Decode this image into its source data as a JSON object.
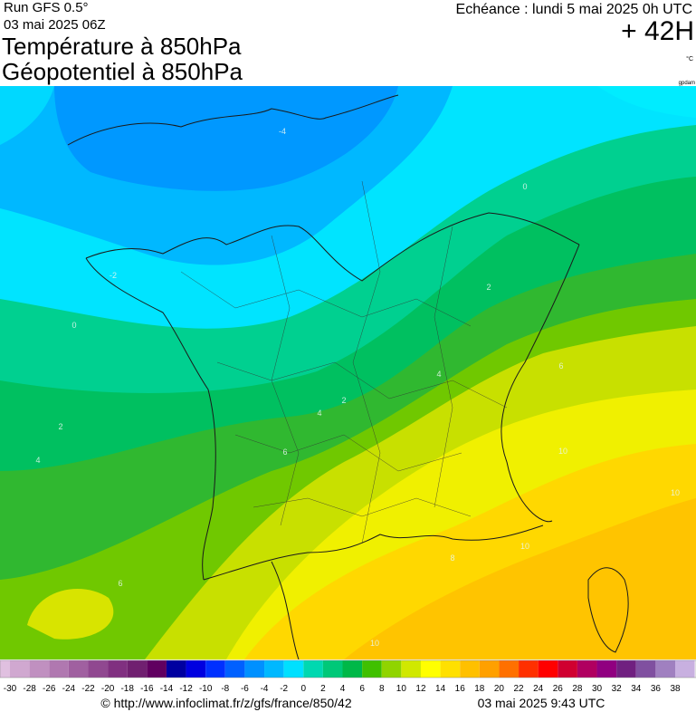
{
  "header": {
    "run": "Run GFS 0.5°",
    "run_date": "03 mai 2025 06Z",
    "title1": "Température à 850hPa",
    "title2": "Géopotentiel à 850hPa",
    "valid": "Echéance : lundi 5 mai 2025 0h UTC",
    "lead": "+ 42H",
    "unit": "°C",
    "unit2": "gpdam"
  },
  "legend": {
    "labels": [
      -30,
      -28,
      -26,
      -24,
      -22,
      -20,
      -18,
      -16,
      -14,
      -12,
      -10,
      -8,
      -6,
      -4,
      -2,
      0,
      2,
      4,
      6,
      8,
      10,
      12,
      14,
      16,
      18,
      20,
      22,
      24,
      26,
      28,
      30,
      32,
      34,
      36,
      38
    ],
    "colors": [
      "#e0c0e0",
      "#d0a8d0",
      "#c090c0",
      "#b078b0",
      "#a060a0",
      "#904890",
      "#803080",
      "#702070",
      "#600060",
      "#0000a0",
      "#0000e0",
      "#0030ff",
      "#0060ff",
      "#0090ff",
      "#00b8ff",
      "#00e0ff",
      "#00d8b0",
      "#00c878",
      "#00b848",
      "#40c000",
      "#90d400",
      "#d0e800",
      "#ffff00",
      "#ffe000",
      "#ffc000",
      "#ffa000",
      "#ff7000",
      "#ff3000",
      "#ff0000",
      "#d00030",
      "#b00060",
      "#900080",
      "#702080",
      "#8050a0",
      "#a080c0",
      "#c8b0e0"
    ]
  },
  "map": {
    "contour_labels": [
      -4,
      -2,
      0,
      0,
      2,
      2,
      2,
      4,
      4,
      4,
      6,
      6,
      6,
      8,
      10,
      10,
      10,
      10
    ]
  },
  "footer": {
    "source": "© http://www.infoclimat.fr/z/gfs/france/850/42",
    "date": "03 mai 2025  9:43 UTC"
  }
}
